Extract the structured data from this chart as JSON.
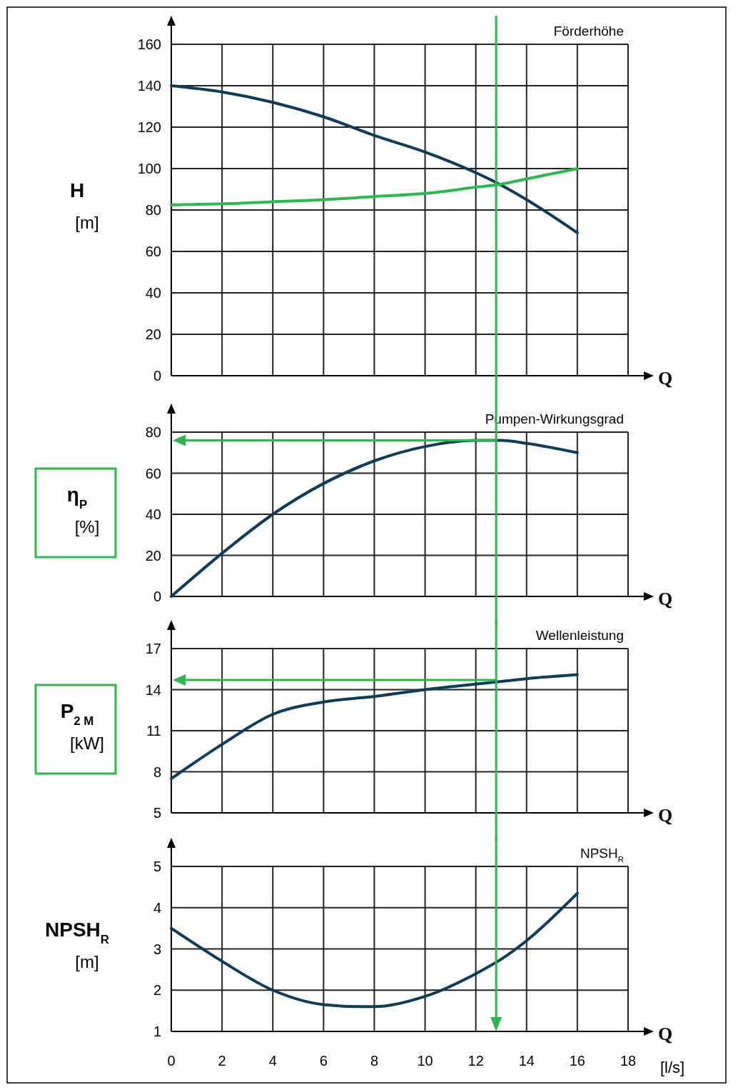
{
  "chart_data": [
    {
      "type": "line",
      "title": "Förderhöhe",
      "xlabel": "Q",
      "ylabel": "H\n[m]",
      "x": [
        0,
        2,
        4,
        6,
        8,
        10,
        12,
        13,
        14,
        16
      ],
      "xlim": [
        0,
        18
      ],
      "xticks": [
        0,
        2,
        4,
        6,
        8,
        10,
        12,
        14,
        16,
        18
      ],
      "ylim": [
        0,
        160
      ],
      "yticks": [
        0,
        20,
        40,
        60,
        80,
        100,
        120,
        140,
        160
      ],
      "grid": true,
      "tick_labels": "y",
      "series": [
        {
          "color": "#0d3b58",
          "values": [
            140,
            137,
            132,
            125,
            116,
            108,
            98,
            92,
            85,
            69
          ]
        },
        {
          "color": "#2db84d",
          "values": [
            82.5,
            83,
            84,
            85,
            86.5,
            88,
            91,
            92.5,
            95,
            100
          ]
        }
      ],
      "ref_lines": [
        {
          "axis": "x",
          "value": 12.8,
          "color": "#2db84d"
        }
      ]
    },
    {
      "type": "line",
      "title": "Pumpen-Wirkungsgrad",
      "xlabel": "Q",
      "ylabel": "η$_{P}$\n[%]",
      "x": [
        0,
        2,
        4,
        6,
        8,
        10,
        12,
        13,
        14,
        16
      ],
      "xlim": [
        0,
        18
      ],
      "xticks": [
        0,
        2,
        4,
        6,
        8,
        10,
        12,
        14,
        16,
        18
      ],
      "ylim": [
        0,
        80
      ],
      "yticks": [
        0,
        20,
        40,
        60,
        80
      ],
      "grid": true,
      "tick_labels": "y",
      "series": [
        {
          "color": "#0d3b58",
          "values": [
            0,
            21,
            40,
            55,
            66,
            73,
            76,
            76,
            74.5,
            70
          ]
        }
      ],
      "ref_lines": [
        {
          "axis": "x",
          "value": 12.8,
          "color": "#2db84d"
        },
        {
          "axis": "y",
          "value": 76,
          "color": "#2db84d"
        }
      ]
    },
    {
      "type": "line",
      "title": "Wellenleistung",
      "xlabel": "Q",
      "ylabel": "P$_{2 M}$\n[kW]",
      "x": [
        0,
        2,
        4,
        6,
        8,
        10,
        12,
        13,
        14,
        16
      ],
      "xlim": [
        0,
        18
      ],
      "xticks": [
        0,
        2,
        4,
        6,
        8,
        10,
        12,
        14,
        16,
        18
      ],
      "ylim": [
        5,
        17
      ],
      "yticks": [
        5,
        8,
        11,
        14,
        17
      ],
      "grid": true,
      "tick_labels": "y",
      "series": [
        {
          "color": "#0d3b58",
          "values": [
            7.5,
            10,
            12.2,
            13.1,
            13.5,
            14,
            14.4,
            14.6,
            14.8,
            15.1
          ]
        }
      ],
      "ref_lines": [
        {
          "axis": "x",
          "value": 12.8,
          "color": "#2db84d"
        },
        {
          "axis": "y",
          "value": 14.7,
          "color": "#2db84d"
        }
      ]
    },
    {
      "type": "line",
      "title": "NPSH$_{R}$",
      "xlabel": "Q",
      "ylabel": "NPSH$_{R}$\n[m]",
      "x": [
        0,
        2,
        4,
        6,
        7.5,
        8,
        10,
        12,
        13,
        14,
        16
      ],
      "xlim": [
        0,
        18
      ],
      "xticks": [
        0,
        2,
        4,
        6,
        8,
        10,
        12,
        14,
        16,
        18
      ],
      "ylim": [
        1,
        5
      ],
      "yticks": [
        1,
        2,
        3,
        4,
        5
      ],
      "grid": true,
      "annotations": [
        "[l/s]"
      ],
      "series": [
        {
          "color": "#0d3b58",
          "values": [
            3.5,
            2.7,
            2.0,
            1.65,
            1.6,
            1.6,
            1.85,
            2.4,
            2.75,
            3.2,
            4.35
          ]
        }
      ],
      "ref_lines": [
        {
          "axis": "x",
          "value": 12.8,
          "color": "#2db84d"
        }
      ]
    }
  ]
}
